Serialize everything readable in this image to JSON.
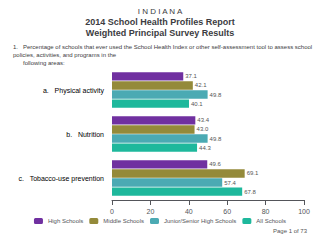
{
  "chart_data": {
    "type": "bar",
    "orientation": "horizontal",
    "title": "2014 School Health Profiles Report",
    "subtitle": "Weighted Principal Survey Results",
    "annotations": [
      "I N D I A N A",
      "1.   Percentage of schools that ever used the School Health Index or other self-assessment tool to assess school policies, activities, and programs in the\n      following areas:",
      "Page 1 of 73"
    ],
    "categories": [
      "a.   Physical activity",
      "b.   Nutrition",
      "c.   Tobacco-use prevention"
    ],
    "series": [
      {
        "name": "High Schools",
        "color": "#7030a0",
        "values": [
          37.1,
          43.4,
          49.6
        ]
      },
      {
        "name": "Middle Schools",
        "color": "#948a3a",
        "values": [
          42.1,
          43.0,
          69.1
        ],
        "value_labels": [
          "42.1",
          "43.0",
          "69.1"
        ]
      },
      {
        "name": "Junior/Senior High Schools",
        "color": "#4baab3",
        "values": [
          49.8,
          49.8,
          57.4
        ]
      },
      {
        "name": "All Schools",
        "color": "#1eb89c",
        "values": [
          40.1,
          44.3,
          67.8
        ]
      }
    ],
    "xlim": [
      0,
      100
    ],
    "xticks": [
      0,
      20,
      40,
      60,
      80,
      100
    ],
    "grid": false,
    "legend": "bottom",
    "data_labels": true
  }
}
